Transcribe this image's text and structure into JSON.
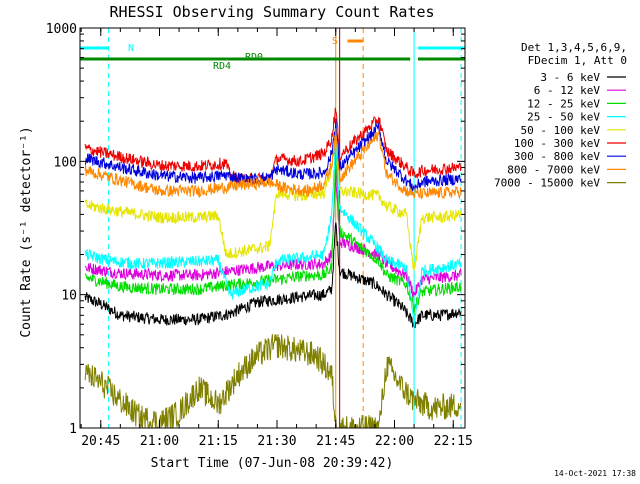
{
  "chart_data": {
    "type": "line",
    "title": "RHESSI Observing Summary Count Rates",
    "xlabel": "Start Time (07-Jun-08 20:39:42)",
    "ylabel": "Count Rate (s⁻¹ detector⁻¹)",
    "y_scale": "log",
    "ylim": [
      1,
      1000
    ],
    "xlim": [
      "20:39:42",
      "22:18:00"
    ],
    "x_ticks": [
      "20:45",
      "21:00",
      "21:15",
      "21:30",
      "21:45",
      "22:00",
      "22:15"
    ],
    "y_ticks": [
      "1",
      "10",
      "100",
      "1000"
    ],
    "grid": false,
    "legend_position": "right",
    "legend_header": [
      "Det 1,3,4,5,6,9,",
      "FDecim 1, Att 0"
    ],
    "series": [
      {
        "name": "3 - 6 keV",
        "color": "#000000",
        "points": [
          [
            "20:41",
            9.5
          ],
          [
            "20:45",
            8.5
          ],
          [
            "20:50",
            7
          ],
          [
            "21:00",
            6.5
          ],
          [
            "21:10",
            6.5
          ],
          [
            "21:18",
            7.2
          ],
          [
            "21:25",
            8.8
          ],
          [
            "21:30",
            9.2
          ],
          [
            "21:38",
            9.8
          ],
          [
            "21:42",
            10
          ],
          [
            "21:44",
            11
          ],
          [
            "21:45",
            35
          ],
          [
            "21:46",
            15
          ],
          [
            "21:55",
            12
          ],
          [
            "21:58",
            10
          ],
          [
            "22:02",
            8
          ],
          [
            "22:05",
            6
          ],
          [
            "22:07",
            7
          ],
          [
            "22:12",
            7
          ],
          [
            "22:17",
            7.5
          ]
        ]
      },
      {
        "name": "6 - 12 keV",
        "color": "#dd00dd",
        "points": [
          [
            "20:41",
            16
          ],
          [
            "20:50",
            14.5
          ],
          [
            "21:00",
            14
          ],
          [
            "21:10",
            14
          ],
          [
            "21:18",
            15
          ],
          [
            "21:25",
            16
          ],
          [
            "21:30",
            16.5
          ],
          [
            "21:38",
            17
          ],
          [
            "21:42",
            17
          ],
          [
            "21:44",
            20
          ],
          [
            "21:45",
            80
          ],
          [
            "21:46",
            25
          ],
          [
            "21:56",
            20
          ],
          [
            "21:58",
            17
          ],
          [
            "22:03",
            14
          ],
          [
            "22:05",
            10
          ],
          [
            "22:07",
            13
          ],
          [
            "22:12",
            13.5
          ],
          [
            "22:17",
            14
          ]
        ]
      },
      {
        "name": "12 - 25 keV",
        "color": "#00dd00",
        "points": [
          [
            "20:41",
            13.5
          ],
          [
            "20:50",
            11.5
          ],
          [
            "21:00",
            11
          ],
          [
            "21:10",
            11
          ],
          [
            "21:15",
            11.5
          ],
          [
            "21:20",
            12
          ],
          [
            "21:30",
            13
          ],
          [
            "21:38",
            14
          ],
          [
            "21:42",
            14
          ],
          [
            "21:44",
            16
          ],
          [
            "21:45",
            120
          ],
          [
            "21:46",
            30
          ],
          [
            "21:56",
            18
          ],
          [
            "21:58",
            14
          ],
          [
            "22:03",
            12
          ],
          [
            "22:05",
            8
          ],
          [
            "22:07",
            10.5
          ],
          [
            "22:12",
            11
          ],
          [
            "22:17",
            11.5
          ]
        ]
      },
      {
        "name": "25 - 50 keV",
        "color": "#00ffff",
        "points": [
          [
            "20:41",
            20
          ],
          [
            "20:47",
            18
          ],
          [
            "20:55",
            17
          ],
          [
            "21:05",
            17.5
          ],
          [
            "21:15",
            18
          ],
          [
            "21:18",
            10
          ],
          [
            "21:22",
            11
          ],
          [
            "21:28",
            12
          ],
          [
            "21:30",
            18
          ],
          [
            "21:38",
            19
          ],
          [
            "21:42",
            20
          ],
          [
            "21:44",
            40
          ],
          [
            "21:45",
            150
          ],
          [
            "21:46",
            45
          ],
          [
            "21:56",
            22
          ],
          [
            "21:58",
            18
          ],
          [
            "22:03",
            16
          ],
          [
            "22:05",
            6
          ],
          [
            "22:07",
            15
          ],
          [
            "22:12",
            16
          ],
          [
            "22:17",
            17
          ]
        ]
      },
      {
        "name": "50 - 100 keV",
        "color": "#e5e500",
        "points": [
          [
            "20:41",
            47
          ],
          [
            "20:50",
            42
          ],
          [
            "21:00",
            38
          ],
          [
            "21:10",
            38
          ],
          [
            "21:15",
            39
          ],
          [
            "21:17",
            20
          ],
          [
            "21:24",
            22
          ],
          [
            "21:28",
            23
          ],
          [
            "21:30",
            58
          ],
          [
            "21:36",
            55
          ],
          [
            "21:42",
            58
          ],
          [
            "21:44",
            90
          ],
          [
            "21:45",
            180
          ],
          [
            "21:46",
            60
          ],
          [
            "21:56",
            55
          ],
          [
            "21:58",
            46
          ],
          [
            "22:03",
            40
          ],
          [
            "22:05",
            15
          ],
          [
            "22:07",
            38
          ],
          [
            "22:12",
            38
          ],
          [
            "22:17",
            40
          ]
        ]
      },
      {
        "name": "100 - 300 keV",
        "color": "#ee0000",
        "points": [
          [
            "20:41",
            125
          ],
          [
            "20:50",
            108
          ],
          [
            "21:00",
            93
          ],
          [
            "21:10",
            92
          ],
          [
            "21:17",
            97
          ],
          [
            "21:18",
            78
          ],
          [
            "21:22",
            73
          ],
          [
            "21:28",
            75
          ],
          [
            "21:30",
            105
          ],
          [
            "21:36",
            100
          ],
          [
            "21:42",
            115
          ],
          [
            "21:44",
            150
          ],
          [
            "21:45",
            260
          ],
          [
            "21:46",
            110
          ],
          [
            "21:56",
            210
          ],
          [
            "21:58",
            120
          ],
          [
            "22:03",
            90
          ],
          [
            "22:05",
            80
          ],
          [
            "22:07",
            85
          ],
          [
            "22:12",
            88
          ],
          [
            "22:17",
            90
          ]
        ]
      },
      {
        "name": "300 - 800 keV",
        "color": "#0000dd",
        "points": [
          [
            "20:41",
            106
          ],
          [
            "20:50",
            90
          ],
          [
            "21:00",
            78
          ],
          [
            "21:10",
            75
          ],
          [
            "21:17",
            79
          ],
          [
            "21:22",
            73
          ],
          [
            "21:28",
            75
          ],
          [
            "21:30",
            87
          ],
          [
            "21:36",
            80
          ],
          [
            "21:42",
            82
          ],
          [
            "21:44",
            115
          ],
          [
            "21:45",
            200
          ],
          [
            "21:46",
            90
          ],
          [
            "21:56",
            180
          ],
          [
            "21:58",
            100
          ],
          [
            "22:03",
            72
          ],
          [
            "22:05",
            63
          ],
          [
            "22:07",
            70
          ],
          [
            "22:12",
            72
          ],
          [
            "22:17",
            74
          ]
        ]
      },
      {
        "name": "800 - 7000 keV",
        "color": "#ff8800",
        "points": [
          [
            "20:41",
            86
          ],
          [
            "20:50",
            72
          ],
          [
            "21:00",
            60
          ],
          [
            "21:10",
            60
          ],
          [
            "21:17",
            64
          ],
          [
            "21:22",
            67
          ],
          [
            "21:28",
            70
          ],
          [
            "21:32",
            63
          ],
          [
            "21:38",
            60
          ],
          [
            "21:42",
            68
          ],
          [
            "21:44",
            95
          ],
          [
            "21:45",
            160
          ],
          [
            "21:46",
            75
          ],
          [
            "21:56",
            160
          ],
          [
            "21:58",
            80
          ],
          [
            "22:03",
            60
          ],
          [
            "22:05",
            57
          ],
          [
            "22:07",
            57
          ],
          [
            "22:12",
            58
          ],
          [
            "22:17",
            59
          ]
        ]
      },
      {
        "name": "7000 - 15000 keV",
        "color": "#808000",
        "points": [
          [
            "20:41",
            2.6
          ],
          [
            "20:45",
            2.2
          ],
          [
            "20:50",
            1.6
          ],
          [
            "20:55",
            1.2
          ],
          [
            "21:00",
            1.1
          ],
          [
            "21:05",
            1.3
          ],
          [
            "21:10",
            2.0
          ],
          [
            "21:15",
            1.5
          ],
          [
            "21:20",
            2.5
          ],
          [
            "21:25",
            3.5
          ],
          [
            "21:30",
            4.2
          ],
          [
            "21:35",
            3.8
          ],
          [
            "21:40",
            3.5
          ],
          [
            "21:44",
            2.5
          ],
          [
            "21:45",
            1
          ],
          [
            "21:56",
            1
          ],
          [
            "21:58",
            3
          ],
          [
            "22:02",
            2
          ],
          [
            "22:05",
            1.6
          ],
          [
            "22:10",
            1.4
          ],
          [
            "22:17",
            1.5
          ]
        ]
      }
    ],
    "state_bars": [
      {
        "label": "N",
        "color": "#00ffff",
        "segments": [
          [
            "20:39:42",
            "20:47"
          ],
          [
            "22:06",
            "22:18"
          ]
        ]
      },
      {
        "label": "S",
        "color": "#ff8800",
        "segments": [
          [
            "21:48",
            "21:52"
          ]
        ]
      },
      {
        "label": "RD0",
        "color": "#008800",
        "segments": [
          [
            "20:39:42",
            "21:17"
          ],
          [
            "21:29",
            "22:04"
          ],
          [
            "22:06",
            "22:18"
          ]
        ]
      },
      {
        "label": "RD4",
        "color": "#008800",
        "segments": [
          [
            "21:17",
            "21:29"
          ]
        ]
      }
    ],
    "vertical_markers": [
      {
        "color": "#00ffff",
        "style": "solid",
        "times": [
          "20:39:42",
          "22:05"
        ]
      },
      {
        "color": "#00ffff",
        "style": "dashed",
        "times": [
          "20:47",
          "22:17"
        ]
      },
      {
        "color": "#ff8800",
        "style": "solid",
        "times": [
          "21:45"
        ]
      },
      {
        "color": "#ff8800",
        "style": "dashed",
        "times": [
          "21:52"
        ]
      },
      {
        "color": "#880000",
        "style": "solid",
        "times": [
          "21:46"
        ]
      }
    ]
  },
  "footer_timestamp": "14-Oct-2021 17:38"
}
